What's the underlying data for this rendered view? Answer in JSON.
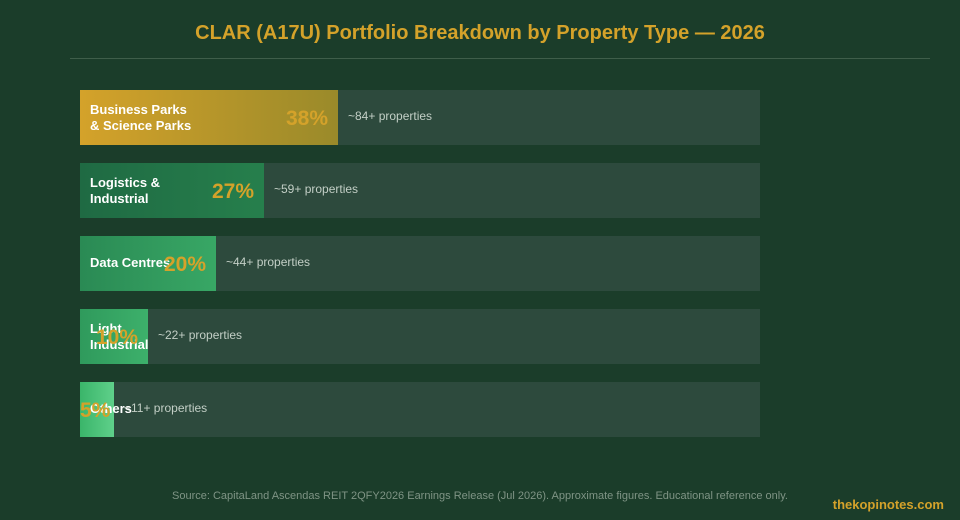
{
  "chart_data": {
    "type": "bar",
    "orientation": "horizontal",
    "title": "CLAR (A17U) Portfolio Breakdown by Property Type — 2026",
    "categories": [
      "Business Parks\n& Science Parks",
      "Logistics &\nIndustrial",
      "Data Centres",
      "Light\nIndustrial",
      "Others"
    ],
    "values": [
      38,
      27,
      20,
      10,
      5
    ],
    "value_labels": [
      "38%",
      "27%",
      "20%",
      "10%",
      "5%"
    ],
    "counts": [
      "~84+ properties",
      "~59+ properties",
      "~44+ properties",
      "~22+ properties",
      "~11+ properties"
    ],
    "xlim": [
      0,
      100
    ],
    "grid": false,
    "colors": {
      "bars": [
        [
          "#d4a22a",
          "#9a8a2a"
        ],
        [
          "#1f6a43",
          "#267f4c"
        ],
        [
          "#2a8a54",
          "#38a765"
        ],
        [
          "#2f9a5c",
          "#3db06b"
        ],
        [
          "#3ab56a",
          "#5fd08a"
        ]
      ],
      "track": "#2d4a3d",
      "accent": "#d4a22a"
    }
  },
  "source": "Source: CapitaLand Ascendas REIT 2QFY2026 Earnings Release (Jul 2026). Approximate figures. Educational reference only.",
  "watermark": "thekopinotes.com"
}
